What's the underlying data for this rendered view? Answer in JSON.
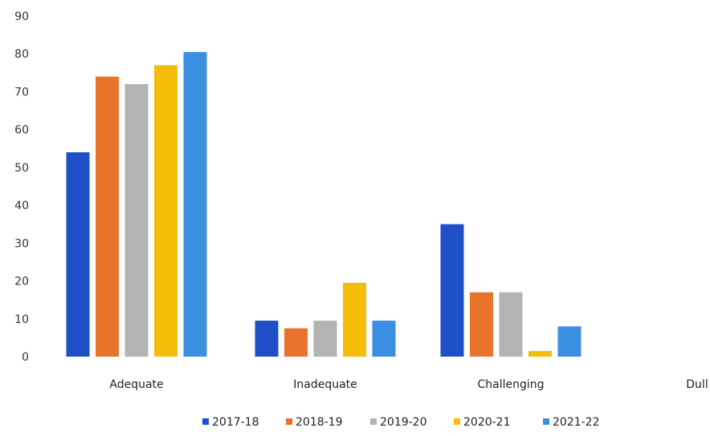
{
  "chart_data": {
    "type": "bar",
    "title": "",
    "xlabel": "",
    "ylabel": "",
    "ylim": [
      0,
      90
    ],
    "yticks": [
      0,
      10,
      20,
      30,
      40,
      50,
      60,
      70,
      80,
      90
    ],
    "grid": false,
    "legend": "bottom",
    "categories": [
      "Adequate",
      "Inadequate",
      "Challenging",
      "Dull"
    ],
    "series": [
      {
        "name": "2017-18",
        "color": "#1f4fc6",
        "values": [
          54,
          9.5,
          35,
          0
        ]
      },
      {
        "name": "2018-19",
        "color": "#e8732a",
        "values": [
          74,
          7.5,
          17,
          0
        ]
      },
      {
        "name": "2019-20",
        "color": "#b3b3b3",
        "values": [
          72,
          9.5,
          17,
          0
        ]
      },
      {
        "name": "2020-21",
        "color": "#f5bd0a",
        "values": [
          77,
          19.5,
          1.5,
          0
        ]
      },
      {
        "name": "2021-22",
        "color": "#3a8fe0",
        "values": [
          80.5,
          9.5,
          8,
          0
        ]
      }
    ]
  }
}
